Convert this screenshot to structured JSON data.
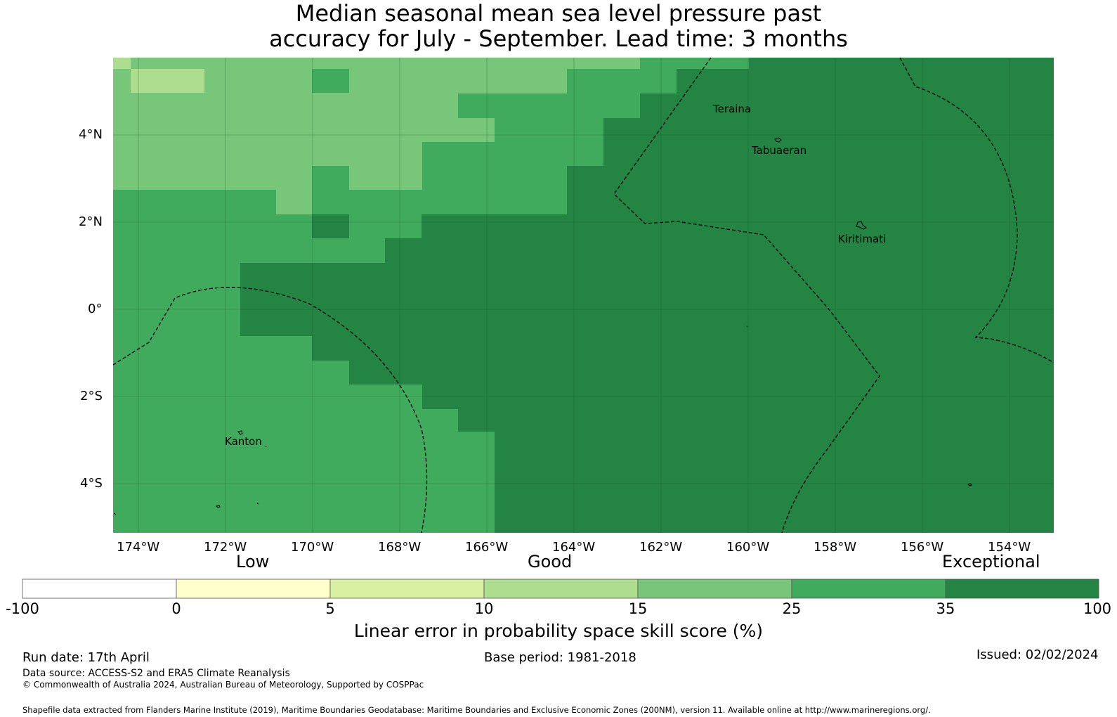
{
  "title": {
    "line1": "Median seasonal mean sea level pressure past",
    "line2": "accuracy for July - September. Lead time: 3 months"
  },
  "map": {
    "lat_ticks": [
      "4°N",
      "2°N",
      "0°",
      "2°S",
      "4°S"
    ],
    "lon_ticks": [
      "174°W",
      "172°W",
      "170°W",
      "168°W",
      "166°W",
      "164°W",
      "162°W",
      "160°W",
      "158°W",
      "156°W",
      "154°W"
    ],
    "places": {
      "teraina": "Teraina",
      "tabuaeran": "Tabuaeran",
      "kiritimati": "Kiritimati",
      "kanton": "Kanton"
    }
  },
  "colorbar": {
    "categories": {
      "low": "Low",
      "good": "Good",
      "exceptional": "Exceptional"
    },
    "ticks": [
      "-100",
      "0",
      "5",
      "10",
      "15",
      "25",
      "35",
      "100"
    ],
    "colors": [
      "#ffffff",
      "#ffffcc",
      "#d9f0a3",
      "#addd8e",
      "#78c679",
      "#41ab5d",
      "#238443"
    ],
    "label": "Linear error in probability space skill score (%)"
  },
  "footer": {
    "run_date": "Run date: 17th April",
    "base_period": "Base period: 1981-2018",
    "issued": "Issued: 02/02/2024",
    "data_source": "Data source: ACCESS-S2 and ERA5 Climate Reanalysis",
    "copyright": "© Commonwealth of Australia 2024, Australian Bureau of Meteorology, Supported by COSPPac",
    "shapefile": "Shapefile data extracted from Flanders Marine Institute (2019), Maritime Boundaries Geodatabase: Maritime Boundaries and Exclusive Economic Zones (200NM), version 11. Available online at http://www.marineregions.org/."
  }
}
